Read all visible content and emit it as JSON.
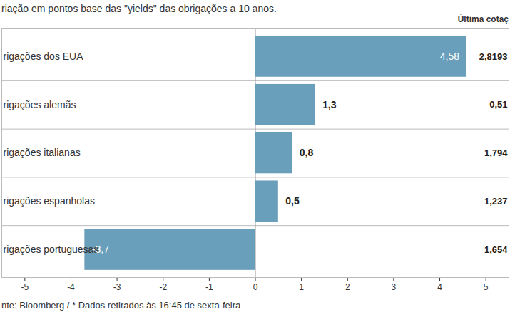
{
  "chart_data": {
    "type": "bar",
    "orientation": "horizontal",
    "subtitle": "riação em pontos base das \"yields\" das obrigações a 10 anos.",
    "categories": [
      "rigações dos EUA",
      "rigações alemãs",
      "rigações italianas",
      "rigações espanholas",
      "rigações portuguesas"
    ],
    "values": [
      4.58,
      1.3,
      0.8,
      0.5,
      -3.7
    ],
    "value_labels": [
      "4,58",
      "1,3",
      "0,8",
      "0,5",
      "-3,7"
    ],
    "data_labels": true,
    "color": "#6a9fbb",
    "xlim": [
      -5.5,
      5.5
    ],
    "xticks": [
      -5,
      -4,
      -3,
      -2,
      -1,
      0,
      1,
      2,
      3,
      4,
      5
    ],
    "tick_labels": "x",
    "last_quote_title": "Última cotaç",
    "last_quote": [
      "2,8193",
      "0,51",
      "1,794",
      "1,237",
      "1,654"
    ],
    "source": "nte: Bloomberg / * Dados retirados às 16:45 de sexta-feira"
  }
}
